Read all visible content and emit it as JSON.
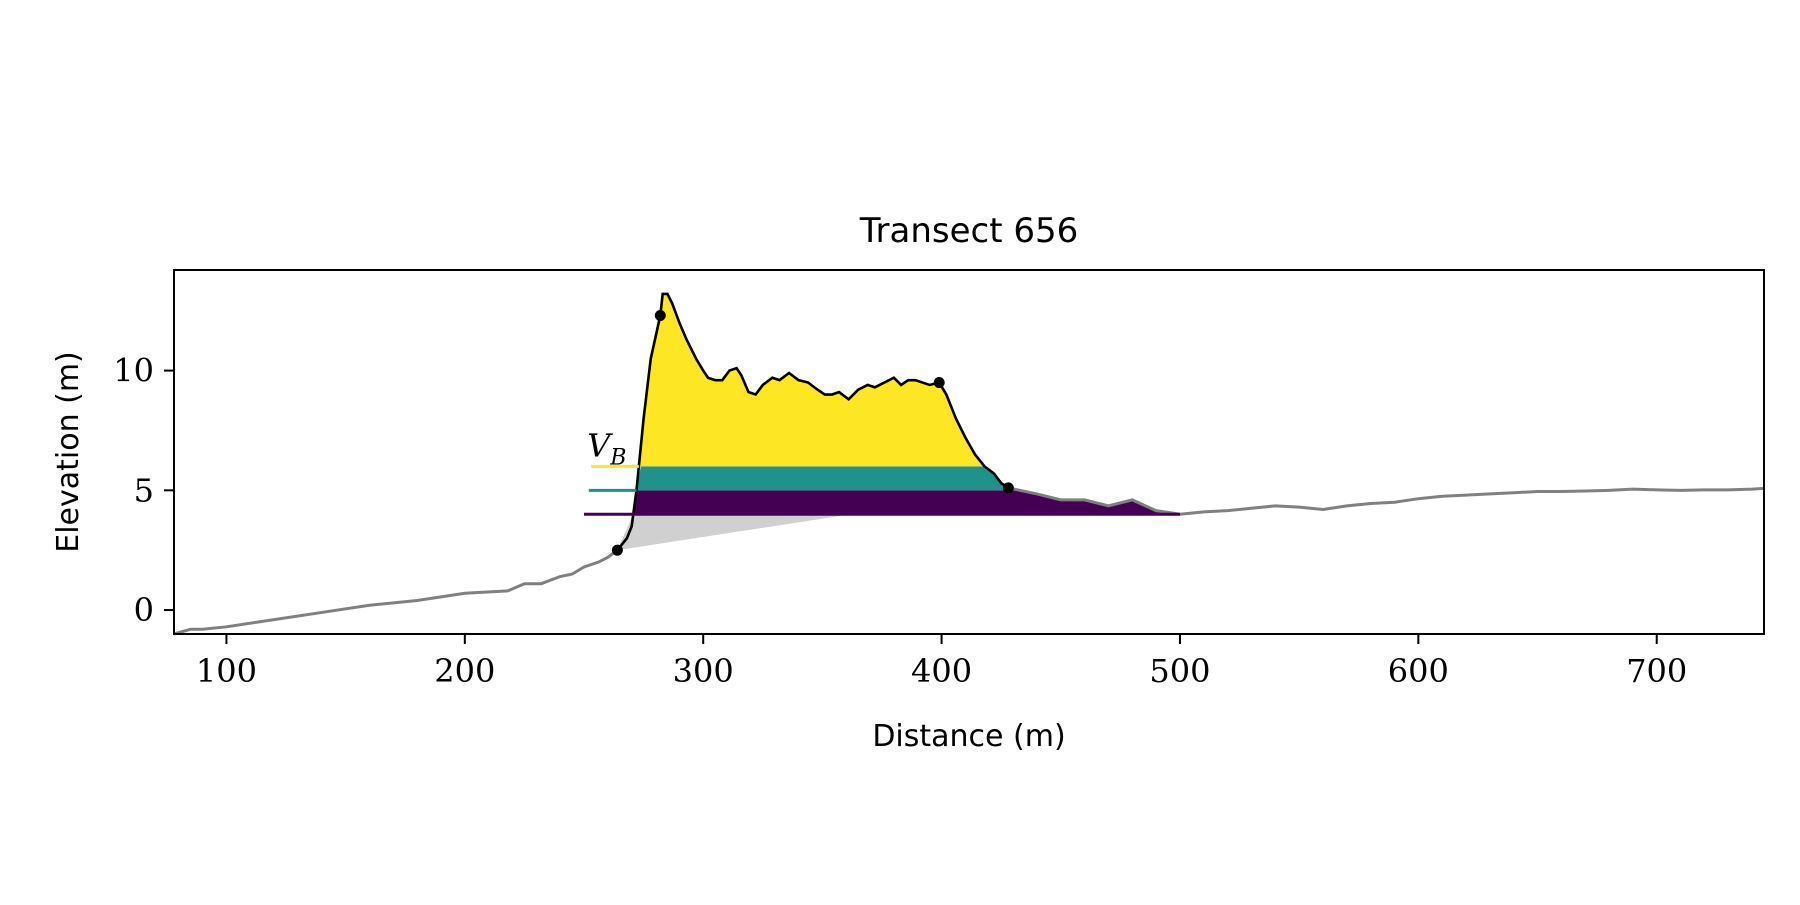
{
  "chart_data": {
    "type": "area",
    "title": "Transect 656",
    "xlabel": "Distance (m)",
    "ylabel": "Elevation (m)",
    "xlim": [
      78,
      745
    ],
    "ylim": [
      -1,
      14.2
    ],
    "xticks": [
      100,
      200,
      300,
      400,
      500,
      600,
      700
    ],
    "yticks": [
      0,
      5,
      10
    ],
    "grid": false,
    "annotation": "V_B",
    "levels": [
      {
        "elevation": 4.0,
        "color": "#440154",
        "start": 250
      },
      {
        "elevation": 5.0,
        "color": "#21918c",
        "start": 252
      },
      {
        "elevation": 6.0,
        "color": "#fde725",
        "start": 253
      }
    ],
    "base_line": {
      "x": [
        264,
        360
      ],
      "y": [
        2.5,
        3.97
      ]
    },
    "key_points": [
      {
        "x": 264,
        "y": 2.5
      },
      {
        "x": 282,
        "y": 12.3
      },
      {
        "x": 399,
        "y": 9.5
      },
      {
        "x": 428,
        "y": 5.1
      }
    ],
    "profile": {
      "name": "Elevation profile",
      "color": "#808080",
      "x": [
        78,
        85,
        90,
        100,
        120,
        140,
        160,
        180,
        200,
        218,
        225,
        232,
        240,
        245,
        250,
        256,
        260,
        264
      ],
      "y": [
        -1.0,
        -0.8,
        -0.8,
        -0.7,
        -0.4,
        -0.1,
        0.2,
        0.4,
        0.7,
        0.8,
        1.1,
        1.1,
        1.4,
        1.5,
        1.8,
        2.0,
        2.2,
        2.5
      ]
    },
    "dune": {
      "name": "Dune profile",
      "color": "#000000",
      "x": [
        264,
        268,
        270,
        272,
        275,
        278,
        282,
        283,
        285,
        287,
        290,
        293,
        297,
        300,
        302,
        305,
        308,
        311,
        314,
        316,
        319,
        322,
        325,
        329,
        332,
        336,
        340,
        344,
        348,
        351,
        354,
        357,
        361,
        365,
        369,
        372,
        376,
        380,
        383,
        386,
        389,
        392,
        395,
        399,
        402,
        406,
        410,
        414,
        418,
        422,
        425,
        428
      ],
      "y": [
        2.5,
        3.0,
        3.5,
        5.0,
        8.0,
        10.5,
        12.3,
        13.2,
        13.2,
        12.8,
        12.0,
        11.3,
        10.5,
        10.0,
        9.7,
        9.6,
        9.6,
        10.0,
        10.1,
        9.8,
        9.1,
        9.0,
        9.4,
        9.7,
        9.6,
        9.9,
        9.6,
        9.5,
        9.2,
        9.0,
        9.0,
        9.1,
        8.8,
        9.2,
        9.4,
        9.3,
        9.5,
        9.7,
        9.4,
        9.6,
        9.6,
        9.5,
        9.4,
        9.5,
        9.0,
        8.0,
        7.2,
        6.5,
        6.0,
        5.7,
        5.3,
        5.1
      ]
    },
    "backshore": {
      "name": "Backshore profile",
      "color": "#808080",
      "x": [
        428,
        440,
        450,
        460,
        470,
        480,
        490,
        500,
        510,
        520,
        530,
        540,
        550,
        560,
        570,
        580,
        590,
        600,
        610,
        620,
        630,
        640,
        650,
        660,
        670,
        680,
        690,
        700,
        710,
        720,
        730,
        740,
        745
      ],
      "y": [
        5.1,
        4.85,
        4.6,
        4.6,
        4.35,
        4.6,
        4.15,
        4.0,
        4.1,
        4.15,
        4.25,
        4.35,
        4.3,
        4.2,
        4.35,
        4.45,
        4.5,
        4.65,
        4.75,
        4.8,
        4.85,
        4.9,
        4.95,
        4.95,
        4.97,
        5.0,
        5.05,
        5.02,
        5.0,
        5.02,
        5.02,
        5.05,
        5.08
      ]
    }
  }
}
